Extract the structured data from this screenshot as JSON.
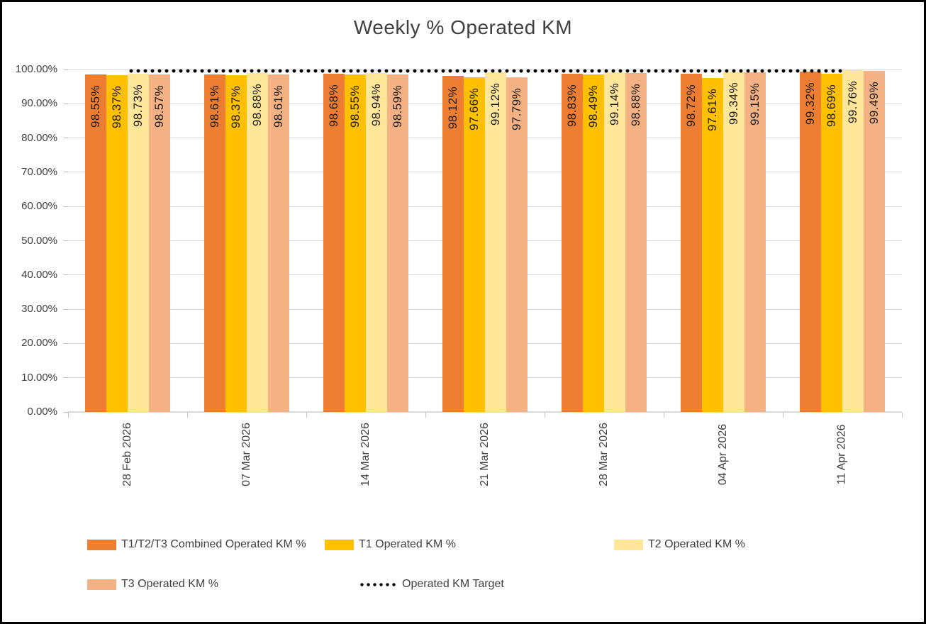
{
  "title": "Weekly % Operated KM",
  "chart_data": {
    "type": "bar",
    "title": "Weekly % Operated KM",
    "categories": [
      "28 Feb 2026",
      "07 Mar 2026",
      "14 Mar 2026",
      "21 Mar 2026",
      "28 Mar 2026",
      "04 Apr 2026",
      "11 Apr 2026"
    ],
    "series": [
      {
        "name": "T1/T2/T3 Combined Operated KM %",
        "color": "#ED7D31",
        "values": [
          98.55,
          98.61,
          98.68,
          98.12,
          98.83,
          98.72,
          99.32
        ]
      },
      {
        "name": "T1 Operated KM %",
        "color": "#FFC000",
        "values": [
          98.37,
          98.37,
          98.55,
          97.66,
          98.49,
          97.61,
          98.69
        ]
      },
      {
        "name": "T2 Operated KM %",
        "color": "#FFE699",
        "values": [
          98.73,
          98.88,
          98.94,
          99.12,
          99.14,
          99.34,
          99.76
        ]
      },
      {
        "name": "T3 Operated KM %",
        "color": "#F4B183",
        "values": [
          98.57,
          98.61,
          98.59,
          97.79,
          98.88,
          99.15,
          99.49
        ]
      }
    ],
    "target_line": {
      "name": "Operated KM Target",
      "value": 99.5,
      "color": "#000000",
      "style": "dotted"
    },
    "data_label_format": "0.00%",
    "y_axis": {
      "min": 0,
      "max": 100,
      "step": 10,
      "ticks": [
        "0.00%",
        "10.00%",
        "20.00%",
        "30.00%",
        "40.00%",
        "50.00%",
        "60.00%",
        "70.00%",
        "80.00%",
        "90.00%",
        "100.00%"
      ]
    },
    "grid": true,
    "legend_position": "bottom"
  },
  "colors": {
    "gridline": "#D9D9D9",
    "axis": "#D9D9D9",
    "tick": "#BFBFBF",
    "text": "#404040",
    "bar_label_text": "#1A1A1A"
  }
}
